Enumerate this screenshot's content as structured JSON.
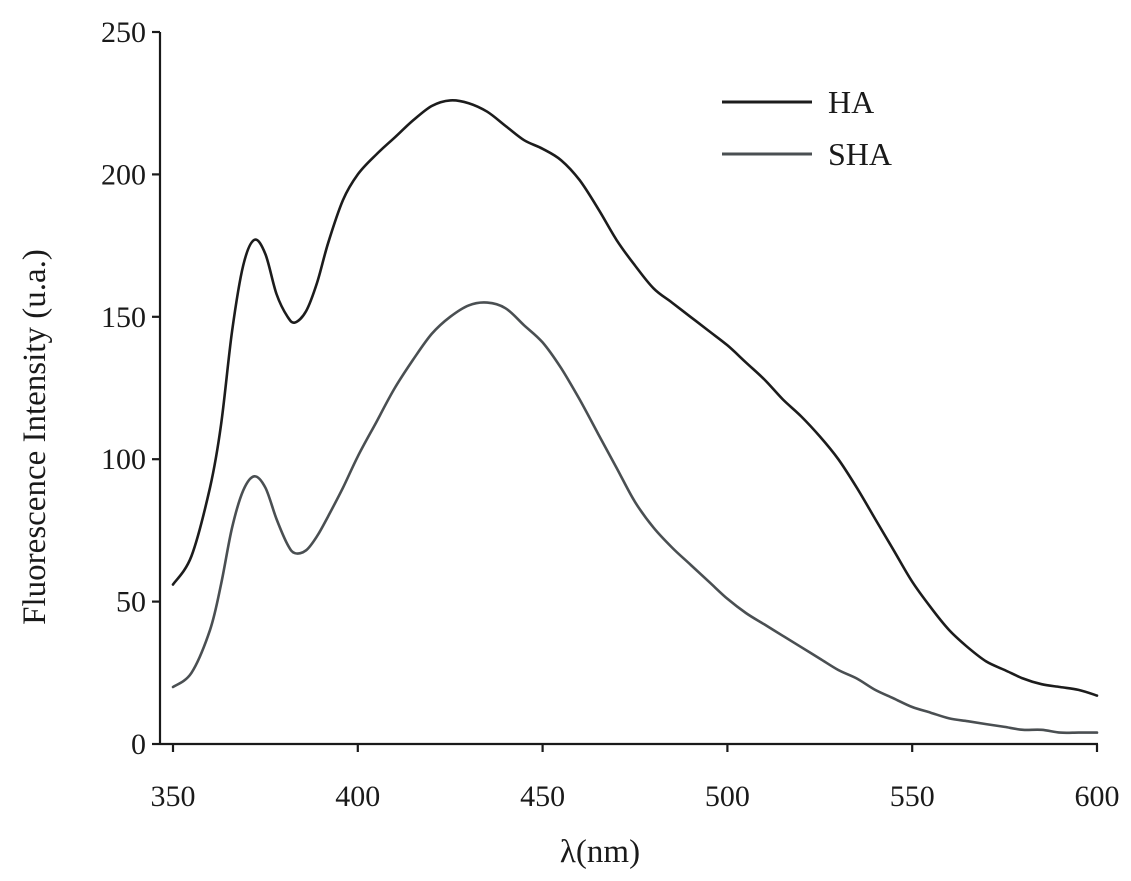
{
  "chart_data": {
    "type": "line",
    "xlabel": "λ(nm)",
    "ylabel": "Fluorescence Intensity (u.a.)",
    "xlim": [
      350,
      600
    ],
    "ylim": [
      0,
      250
    ],
    "xticks": [
      350,
      400,
      450,
      500,
      550,
      600
    ],
    "yticks": [
      0,
      50,
      100,
      150,
      200,
      250
    ],
    "grid": false,
    "legend_position": "top-right",
    "series": [
      {
        "name": "HA",
        "color": "#1c1c1c",
        "x": [
          350,
          355,
          360,
          363,
          366,
          369,
          372,
          375,
          378,
          381,
          383,
          386,
          389,
          392,
          396,
          400,
          405,
          410,
          415,
          420,
          425,
          430,
          435,
          440,
          445,
          450,
          455,
          460,
          465,
          470,
          475,
          480,
          485,
          490,
          495,
          500,
          505,
          510,
          515,
          520,
          525,
          530,
          535,
          540,
          545,
          550,
          555,
          560,
          565,
          570,
          575,
          580,
          585,
          590,
          595,
          600
        ],
        "y": [
          56,
          66,
          90,
          112,
          145,
          168,
          177,
          172,
          158,
          150,
          148,
          152,
          162,
          176,
          191,
          200,
          207,
          213,
          219,
          224,
          226,
          225,
          222,
          217,
          212,
          209,
          205,
          198,
          188,
          177,
          168,
          160,
          155,
          150,
          145,
          140,
          134,
          128,
          121,
          115,
          108,
          100,
          90,
          79,
          68,
          57,
          48,
          40,
          34,
          29,
          26,
          23,
          21,
          20,
          19,
          17
        ]
      },
      {
        "name": "SHA",
        "color": "#4a4f52",
        "x": [
          350,
          355,
          360,
          363,
          366,
          369,
          372,
          375,
          378,
          381,
          383,
          386,
          389,
          392,
          396,
          400,
          405,
          410,
          415,
          420,
          425,
          430,
          435,
          440,
          445,
          450,
          455,
          460,
          465,
          470,
          475,
          480,
          485,
          490,
          495,
          500,
          505,
          510,
          515,
          520,
          525,
          530,
          535,
          540,
          545,
          550,
          555,
          560,
          565,
          570,
          575,
          580,
          585,
          590,
          595,
          600
        ],
        "y": [
          20,
          25,
          40,
          56,
          76,
          89,
          94,
          90,
          79,
          70,
          67,
          68,
          73,
          80,
          90,
          101,
          113,
          125,
          135,
          144,
          150,
          154,
          155,
          153,
          147,
          141,
          132,
          121,
          109,
          97,
          85,
          76,
          69,
          63,
          57,
          51,
          46,
          42,
          38,
          34,
          30,
          26,
          23,
          19,
          16,
          13,
          11,
          9,
          8,
          7,
          6,
          5,
          5,
          4,
          4,
          4
        ]
      }
    ]
  }
}
